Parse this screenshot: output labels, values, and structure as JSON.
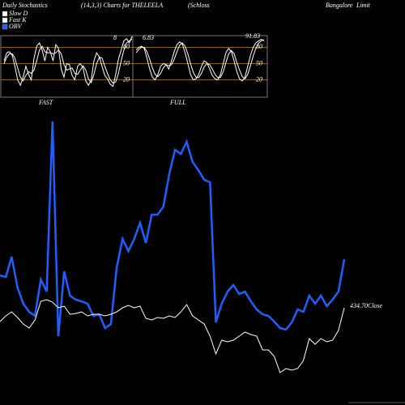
{
  "header": [
    "Daily Stochastics",
    "(14,3,3) Charts for THELEELA",
    "(Schloss",
    "Bangalore",
    "Limit"
  ],
  "legend": [
    {
      "name": "Slow  D",
      "color": "#ffffff"
    },
    {
      "name": "Fast K",
      "color": "#ffffff"
    },
    {
      "name": "OBV",
      "color": "#1f5fff"
    }
  ],
  "chart_data": [
    {
      "type": "line",
      "title": "FAST",
      "ylim": [
        0,
        100
      ],
      "yticks": [
        20,
        50,
        80
      ],
      "grid": true,
      "grid_color": "#b8860b",
      "annotations": [
        "8"
      ],
      "series": [
        {
          "color": "#ffffff",
          "values": [
            55,
            70,
            72,
            65,
            45,
            20,
            10,
            25,
            45,
            30,
            20,
            60,
            82,
            88,
            75,
            55,
            80,
            72,
            55,
            85,
            78,
            40,
            25,
            50,
            48,
            28,
            20,
            45,
            50,
            42,
            18,
            10,
            20,
            55,
            70,
            62,
            45,
            28,
            22,
            12,
            8,
            30,
            58,
            75,
            92,
            96,
            88,
            100
          ]
        },
        {
          "color": "#ffffff",
          "values": [
            50,
            62,
            68,
            68,
            60,
            42,
            25,
            18,
            28,
            35,
            32,
            38,
            55,
            75,
            82,
            72,
            70,
            70,
            68,
            70,
            75,
            68,
            48,
            38,
            40,
            42,
            32,
            30,
            38,
            46,
            38,
            22,
            15,
            30,
            50,
            62,
            60,
            45,
            32,
            20,
            14,
            16,
            32,
            55,
            75,
            88,
            92,
            95
          ]
        }
      ]
    },
    {
      "type": "line",
      "title": "FULL",
      "ylim": [
        0,
        100
      ],
      "yticks": [
        20,
        50,
        80
      ],
      "grid": true,
      "grid_color": "#b8860b",
      "annotations": [
        "6.83",
        "91.83"
      ],
      "series": [
        {
          "color": "#ffffff",
          "values": [
            75,
            80,
            82,
            78,
            60,
            40,
            25,
            20,
            30,
            45,
            50,
            48,
            40,
            55,
            72,
            85,
            90,
            86,
            70,
            50,
            30,
            20,
            22,
            30,
            45,
            55,
            52,
            40,
            28,
            22,
            20,
            30,
            50,
            70,
            78,
            72,
            55,
            35,
            22,
            18,
            25,
            45,
            65,
            80,
            88,
            92,
            95,
            92
          ]
        },
        {
          "color": "#ffffff",
          "values": [
            70,
            76,
            80,
            80,
            72,
            58,
            42,
            30,
            26,
            32,
            42,
            48,
            46,
            48,
            58,
            72,
            84,
            88,
            82,
            68,
            50,
            34,
            25,
            24,
            32,
            44,
            50,
            48,
            40,
            30,
            24,
            25,
            35,
            52,
            68,
            74,
            68,
            52,
            38,
            26,
            22,
            30,
            46,
            64,
            78,
            88,
            92,
            94
          ]
        }
      ]
    },
    {
      "type": "line",
      "ylim": [
        0,
        500
      ],
      "annotations": [
        "434.70Close"
      ],
      "series": [
        {
          "color": "#1f5fff",
          "values": [
            160,
            158,
            183,
            145,
            125,
            115,
            110,
            155,
            140,
            350,
            85,
            165,
            135,
            130,
            128,
            125,
            110,
            112,
            95,
            100,
            170,
            205,
            190,
            205,
            225,
            200,
            235,
            235,
            245,
            285,
            315,
            310,
            325,
            300,
            290,
            278,
            275,
            102,
            125,
            140,
            148,
            137,
            140,
            128,
            118,
            112,
            110,
            103,
            95,
            93,
            102,
            118,
            115,
            135,
            125,
            135,
            122,
            130,
            140,
            180
          ]
        },
        {
          "color": "#ffffff",
          "values": [
            103,
            110,
            115,
            108,
            100,
            95,
            105,
            128,
            130,
            127,
            120,
            122,
            112,
            113,
            115,
            110,
            112,
            112,
            110,
            112,
            115,
            120,
            123,
            120,
            122,
            107,
            105,
            108,
            107,
            110,
            108,
            115,
            124,
            110,
            105,
            100,
            85,
            63,
            80,
            78,
            80,
            85,
            90,
            87,
            85,
            68,
            68,
            60,
            40,
            45,
            43,
            45,
            55,
            82,
            75,
            82,
            78,
            80,
            92,
            120
          ]
        }
      ]
    }
  ]
}
